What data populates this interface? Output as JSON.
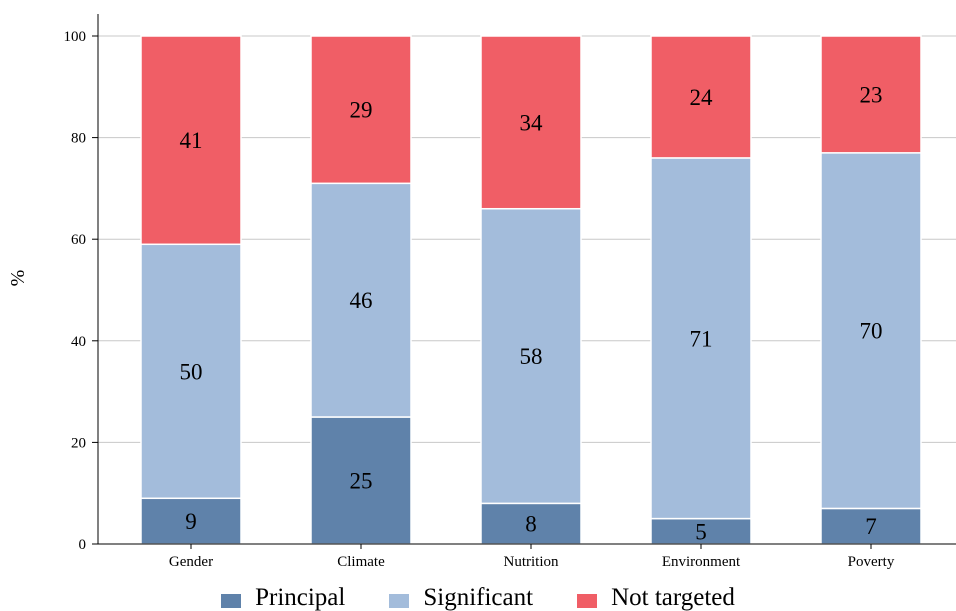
{
  "chart_data": {
    "type": "bar",
    "stacked": true,
    "categories": [
      "Gender",
      "Climate",
      "Nutrition",
      "Environment",
      "Poverty"
    ],
    "series": [
      {
        "name": "Principal",
        "values": [
          9,
          25,
          8,
          5,
          7
        ],
        "color": "#5f82aa"
      },
      {
        "name": "Significant",
        "values": [
          50,
          46,
          58,
          71,
          70
        ],
        "color": "#a3bcdb"
      },
      {
        "name": "Not targeted",
        "values": [
          41,
          29,
          34,
          24,
          23
        ],
        "color": "#f05e66"
      }
    ],
    "ylabel": "%",
    "ylim": [
      0,
      100
    ],
    "yticks": [
      0,
      20,
      40,
      60,
      80,
      100
    ],
    "grid": true,
    "legend_position": "bottom"
  }
}
